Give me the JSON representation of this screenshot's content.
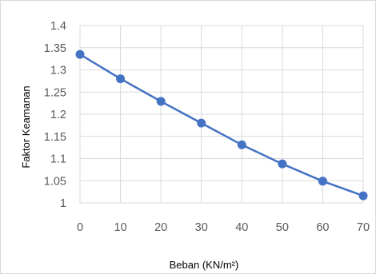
{
  "chart_data": {
    "type": "line",
    "title": "",
    "xlabel": "Beban (KN/m²)",
    "ylabel": "Faktor Keamanan",
    "x": [
      0,
      10,
      20,
      30,
      40,
      50,
      60,
      70
    ],
    "series": [
      {
        "values": [
          1.335,
          1.28,
          1.229,
          1.18,
          1.131,
          1.088,
          1.049,
          1.016
        ]
      }
    ],
    "xlim": [
      0,
      70
    ],
    "ylim": [
      1,
      1.4
    ],
    "xticks": [
      "0",
      "10",
      "20",
      "30",
      "40",
      "50",
      "60",
      "70"
    ],
    "yticks": [
      "1",
      "1.05",
      "1.1",
      "1.15",
      "1.2",
      "1.25",
      "1.3",
      "1.35",
      "1.4"
    ],
    "grid": true,
    "legend": "none",
    "colors": {
      "series": "#4472c4",
      "grid": "#d9d9d9",
      "ticks": "#595959",
      "labels": "#000000"
    }
  }
}
